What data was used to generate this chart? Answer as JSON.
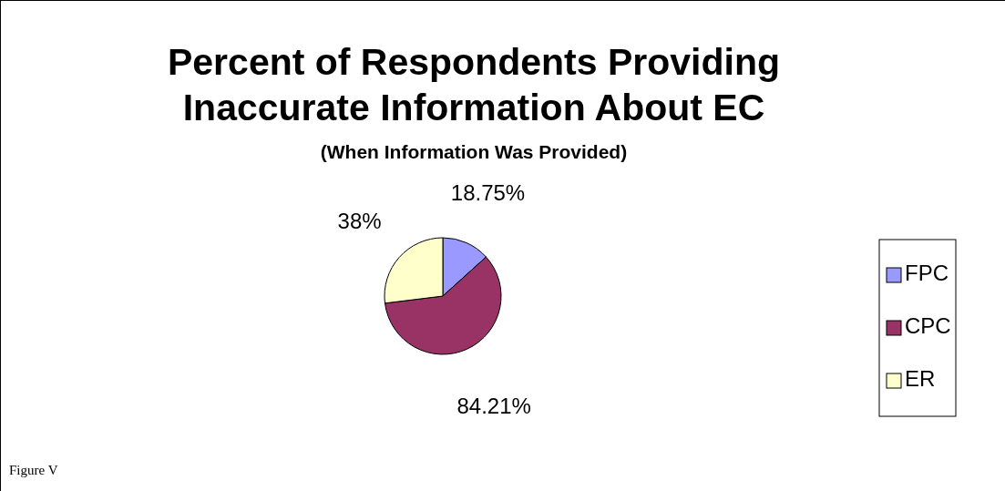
{
  "chart_data": {
    "type": "pie",
    "title": "Percent of Respondents Providing Inaccurate Information About EC",
    "subtitle": "(When Information Was Provided)",
    "categories": [
      "FPC",
      "CPC",
      "ER"
    ],
    "values": [
      18.75,
      84.21,
      38
    ],
    "colors": [
      "#9999ff",
      "#993366",
      "#ffffcc"
    ],
    "value_labels": [
      "18.75%",
      "84.21%",
      "38%"
    ],
    "legend": "right",
    "annotations": [
      "Figure V"
    ]
  }
}
